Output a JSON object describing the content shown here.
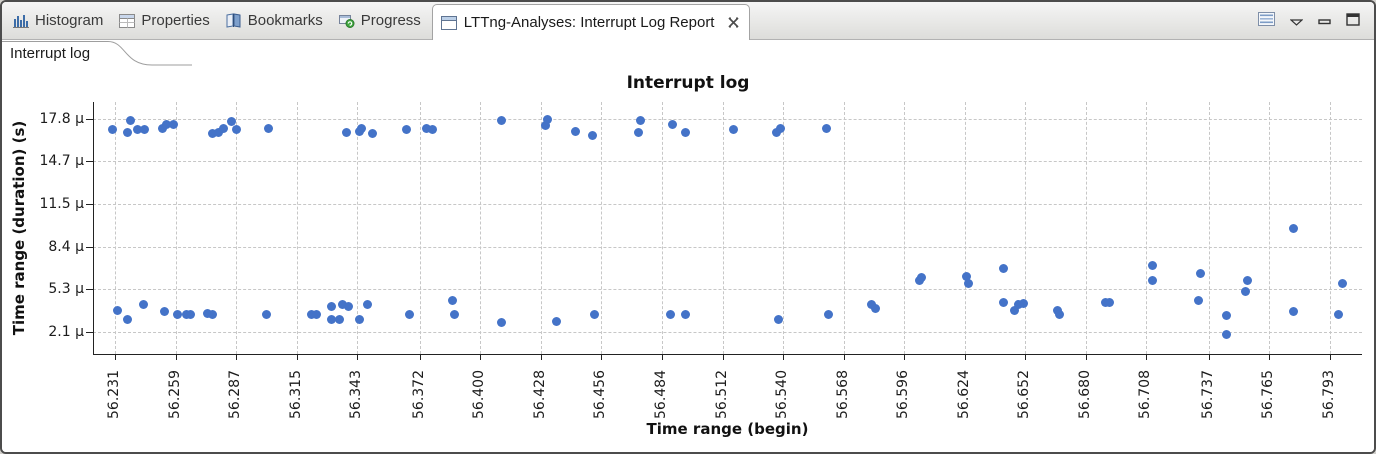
{
  "view_tabbar": {
    "tabs": [
      {
        "label": "Histogram",
        "icon": "histogram-icon",
        "active": false
      },
      {
        "label": "Properties",
        "icon": "properties-icon",
        "active": false
      },
      {
        "label": "Bookmarks",
        "icon": "bookmarks-icon",
        "active": false
      },
      {
        "label": "Progress",
        "icon": "progress-icon",
        "active": false
      },
      {
        "label": "LTTng-Analyses: Interrupt Log Report",
        "icon": "window-icon",
        "active": true,
        "closable": true
      }
    ],
    "toolbar_icons": [
      "view-list-icon",
      "view-menu-chevron-icon",
      "minimize-icon",
      "maximize-icon"
    ]
  },
  "subtab": {
    "label": "Interrupt log"
  },
  "chart_data": {
    "type": "scatter",
    "title": "Interrupt log",
    "xlabel": "Time range (begin)",
    "ylabel": "Time range (duration) (s)",
    "grid": true,
    "point_color": "#4473c8",
    "x_range": [
      56.231,
      56.793
    ],
    "y_range_us": [
      2.1,
      17.8
    ],
    "x_tick_labels": [
      "56.231",
      "56.259",
      "56.287",
      "56.315",
      "56.343",
      "56.372",
      "56.400",
      "56.428",
      "56.456",
      "56.484",
      "56.512",
      "56.540",
      "56.568",
      "56.596",
      "56.624",
      "56.652",
      "56.680",
      "56.708",
      "56.737",
      "56.765",
      "56.793"
    ],
    "y_tick_labels": [
      "2.1 µ",
      "5.3 µ",
      "8.4 µ",
      "11.5 µ",
      "14.7 µ",
      "17.8 µ"
    ],
    "points_time_durationus": [
      [
        56.23,
        17.0
      ],
      [
        56.237,
        16.8
      ],
      [
        56.238,
        17.7
      ],
      [
        56.2415,
        17.0
      ],
      [
        56.2445,
        17.0
      ],
      [
        56.253,
        17.1
      ],
      [
        56.255,
        17.4
      ],
      [
        56.258,
        17.4
      ],
      [
        56.276,
        16.7
      ],
      [
        56.279,
        16.8
      ],
      [
        56.281,
        17.1
      ],
      [
        56.285,
        17.6
      ],
      [
        56.287,
        17.0
      ],
      [
        56.302,
        17.1
      ],
      [
        56.338,
        16.8
      ],
      [
        56.344,
        16.9
      ],
      [
        56.345,
        17.1
      ],
      [
        56.35,
        16.7
      ],
      [
        56.366,
        17.0
      ],
      [
        56.375,
        17.1
      ],
      [
        56.378,
        17.0
      ],
      [
        56.41,
        17.7
      ],
      [
        56.43,
        17.3
      ],
      [
        56.431,
        17.8
      ],
      [
        56.444,
        16.9
      ],
      [
        56.452,
        16.6
      ],
      [
        56.473,
        16.8
      ],
      [
        56.474,
        17.7
      ],
      [
        56.489,
        17.4
      ],
      [
        56.495,
        16.8
      ],
      [
        56.517,
        17.0
      ],
      [
        56.537,
        16.8
      ],
      [
        56.539,
        17.1
      ],
      [
        56.56,
        17.1
      ],
      [
        56.232,
        3.7
      ],
      [
        56.237,
        3.0
      ],
      [
        56.244,
        4.1
      ],
      [
        56.254,
        3.6
      ],
      [
        56.26,
        3.4
      ],
      [
        56.264,
        3.4
      ],
      [
        56.266,
        3.4
      ],
      [
        56.274,
        3.5
      ],
      [
        56.276,
        3.4
      ],
      [
        56.301,
        3.4
      ],
      [
        56.322,
        3.4
      ],
      [
        56.324,
        3.4
      ],
      [
        56.331,
        4.0
      ],
      [
        56.331,
        3.0
      ],
      [
        56.335,
        3.0
      ],
      [
        56.336,
        4.1
      ],
      [
        56.339,
        4.0
      ],
      [
        56.344,
        3.0
      ],
      [
        56.348,
        4.1
      ],
      [
        56.367,
        3.4
      ],
      [
        56.387,
        4.4
      ],
      [
        56.388,
        3.4
      ],
      [
        56.41,
        2.8
      ],
      [
        56.435,
        2.9
      ],
      [
        56.453,
        3.4
      ],
      [
        56.488,
        3.4
      ],
      [
        56.495,
        3.4
      ],
      [
        56.538,
        3.0
      ],
      [
        56.561,
        3.4
      ],
      [
        56.581,
        4.1
      ],
      [
        56.583,
        3.8
      ],
      [
        56.603,
        5.9
      ],
      [
        56.604,
        6.1
      ],
      [
        56.625,
        6.2
      ],
      [
        56.626,
        5.7
      ],
      [
        56.642,
        6.8
      ],
      [
        56.642,
        4.3
      ],
      [
        56.647,
        3.7
      ],
      [
        56.649,
        4.1
      ],
      [
        56.651,
        4.2
      ],
      [
        56.667,
        3.7
      ],
      [
        56.668,
        3.4
      ],
      [
        56.689,
        4.3
      ],
      [
        56.691,
        4.3
      ],
      [
        56.711,
        7.0
      ],
      [
        56.711,
        5.9
      ],
      [
        56.733,
        6.4
      ],
      [
        56.732,
        4.4
      ],
      [
        56.745,
        3.3
      ],
      [
        56.745,
        1.9
      ],
      [
        56.755,
        5.9
      ],
      [
        56.754,
        5.1
      ],
      [
        56.776,
        9.7
      ],
      [
        56.776,
        3.6
      ],
      [
        56.799,
        5.7
      ],
      [
        56.797,
        3.4
      ]
    ]
  }
}
